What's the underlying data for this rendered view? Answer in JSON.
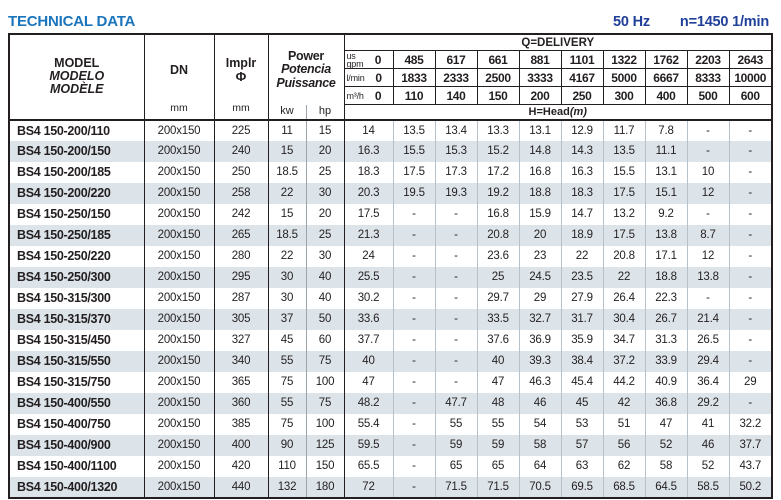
{
  "page": {
    "title": "TECHNICAL DATA",
    "frequency": "50 Hz",
    "speed": "n=1450 1/min"
  },
  "header": {
    "model_lines": [
      "MODEL",
      "MODELO",
      "MODÈLE"
    ],
    "dn": {
      "label": "DN",
      "unit": "mm"
    },
    "impeller": {
      "label": "Implr",
      "symbol": "Φ",
      "unit": "mm"
    },
    "power": {
      "lines": [
        "Power",
        "Potencia",
        "Puissance"
      ],
      "units": [
        "kw",
        "hp"
      ]
    },
    "delivery": {
      "title": "Q=DELIVERY",
      "unit_rows": [
        {
          "unit_lines": [
            "us",
            "gpm"
          ],
          "values": [
            "0",
            "485",
            "617",
            "661",
            "881",
            "1101",
            "1322",
            "1762",
            "2203",
            "2643"
          ]
        },
        {
          "unit_lines": [
            "l/min"
          ],
          "values": [
            "0",
            "1833",
            "2333",
            "2500",
            "3333",
            "4167",
            "5000",
            "6667",
            "8333",
            "10000"
          ]
        },
        {
          "unit_lines": [
            "m³/h"
          ],
          "values": [
            "0",
            "110",
            "140",
            "150",
            "200",
            "250",
            "300",
            "400",
            "500",
            "600"
          ]
        }
      ],
      "head_label": "H=Head",
      "head_unit": "(m)"
    }
  },
  "rows": [
    {
      "model": "BS4 150-200/110",
      "dn": "200x150",
      "impeller": "225",
      "kw": "11",
      "hp": "15",
      "head": [
        "14",
        "13.5",
        "13.4",
        "13.3",
        "13.1",
        "12.9",
        "11.7",
        "7.8",
        "-",
        "-"
      ]
    },
    {
      "model": "BS4 150-200/150",
      "dn": "200x150",
      "impeller": "240",
      "kw": "15",
      "hp": "20",
      "head": [
        "16.3",
        "15.5",
        "15.3",
        "15.2",
        "14.8",
        "14.3",
        "13.5",
        "11.1",
        "-",
        "-"
      ]
    },
    {
      "model": "BS4 150-200/185",
      "dn": "200x150",
      "impeller": "250",
      "kw": "18.5",
      "hp": "25",
      "head": [
        "18.3",
        "17.5",
        "17.3",
        "17.2",
        "16.8",
        "16.3",
        "15.5",
        "13.1",
        "10",
        "-"
      ]
    },
    {
      "model": "BS4 150-200/220",
      "dn": "200x150",
      "impeller": "258",
      "kw": "22",
      "hp": "30",
      "head": [
        "20.3",
        "19.5",
        "19.3",
        "19.2",
        "18.8",
        "18.3",
        "17.5",
        "15.1",
        "12",
        "-"
      ]
    },
    {
      "model": "BS4 150-250/150",
      "dn": "200x150",
      "impeller": "242",
      "kw": "15",
      "hp": "20",
      "head": [
        "17.5",
        "-",
        "-",
        "16.8",
        "15.9",
        "14.7",
        "13.2",
        "9.2",
        "-",
        "-"
      ]
    },
    {
      "model": "BS4 150-250/185",
      "dn": "200x150",
      "impeller": "265",
      "kw": "18.5",
      "hp": "25",
      "head": [
        "21.3",
        "-",
        "-",
        "20.8",
        "20",
        "18.9",
        "17.5",
        "13.8",
        "8.7",
        "-"
      ]
    },
    {
      "model": "BS4 150-250/220",
      "dn": "200x150",
      "impeller": "280",
      "kw": "22",
      "hp": "30",
      "head": [
        "24",
        "-",
        "-",
        "23.6",
        "23",
        "22",
        "20.8",
        "17.1",
        "12",
        "-"
      ]
    },
    {
      "model": "BS4 150-250/300",
      "dn": "200x150",
      "impeller": "295",
      "kw": "30",
      "hp": "40",
      "head": [
        "25.5",
        "-",
        "-",
        "25",
        "24.5",
        "23.5",
        "22",
        "18.8",
        "13.8",
        "-"
      ]
    },
    {
      "model": "BS4 150-315/300",
      "dn": "200x150",
      "impeller": "287",
      "kw": "30",
      "hp": "40",
      "head": [
        "30.2",
        "-",
        "-",
        "29.7",
        "29",
        "27.9",
        "26.4",
        "22.3",
        "-",
        "-"
      ]
    },
    {
      "model": "BS4 150-315/370",
      "dn": "200x150",
      "impeller": "305",
      "kw": "37",
      "hp": "50",
      "head": [
        "33.6",
        "-",
        "-",
        "33.5",
        "32.7",
        "31.7",
        "30.4",
        "26.7",
        "21.4",
        "-"
      ]
    },
    {
      "model": "BS4 150-315/450",
      "dn": "200x150",
      "impeller": "327",
      "kw": "45",
      "hp": "60",
      "head": [
        "37.7",
        "-",
        "-",
        "37.6",
        "36.9",
        "35.9",
        "34.7",
        "31.3",
        "26.5",
        "-"
      ]
    },
    {
      "model": "BS4 150-315/550",
      "dn": "200x150",
      "impeller": "340",
      "kw": "55",
      "hp": "75",
      "head": [
        "40",
        "-",
        "-",
        "40",
        "39.3",
        "38.4",
        "37.2",
        "33.9",
        "29.4",
        "-"
      ]
    },
    {
      "model": "BS4 150-315/750",
      "dn": "200x150",
      "impeller": "365",
      "kw": "75",
      "hp": "100",
      "head": [
        "47",
        "-",
        "-",
        "47",
        "46.3",
        "45.4",
        "44.2",
        "40.9",
        "36.4",
        "29"
      ]
    },
    {
      "model": "BS4 150-400/550",
      "dn": "200x150",
      "impeller": "360",
      "kw": "55",
      "hp": "75",
      "head": [
        "48.2",
        "-",
        "47.7",
        "48",
        "46",
        "45",
        "42",
        "36.8",
        "29.2",
        "-"
      ]
    },
    {
      "model": "BS4 150-400/750",
      "dn": "200x150",
      "impeller": "385",
      "kw": "75",
      "hp": "100",
      "head": [
        "55.4",
        "-",
        "55",
        "55",
        "54",
        "53",
        "51",
        "47",
        "41",
        "32.2"
      ]
    },
    {
      "model": "BS4 150-400/900",
      "dn": "200x150",
      "impeller": "400",
      "kw": "90",
      "hp": "125",
      "head": [
        "59.5",
        "-",
        "59",
        "59",
        "58",
        "57",
        "56",
        "52",
        "46",
        "37.7"
      ]
    },
    {
      "model": "BS4 150-400/1100",
      "dn": "200x150",
      "impeller": "420",
      "kw": "110",
      "hp": "150",
      "head": [
        "65.5",
        "-",
        "65",
        "65",
        "64",
        "63",
        "62",
        "58",
        "52",
        "43.7"
      ]
    },
    {
      "model": "BS4 150-400/1320",
      "dn": "200x150",
      "impeller": "440",
      "kw": "132",
      "hp": "180",
      "head": [
        "72",
        "-",
        "71.5",
        "71.5",
        "70.5",
        "69.5",
        "68.5",
        "64.5",
        "58.5",
        "50.2"
      ]
    }
  ]
}
